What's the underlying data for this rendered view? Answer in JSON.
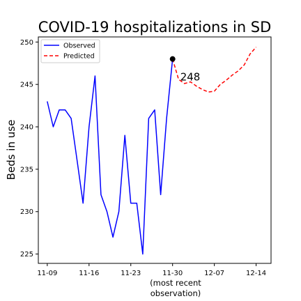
{
  "chart_data": {
    "type": "line",
    "title": "COVID-19 hospitalizations in SD",
    "ylabel": "Beds in use",
    "xlabel_lines": [
      "(most recent",
      "observation)"
    ],
    "ylim": [
      223.9,
      250.6
    ],
    "xlim": [
      -1.5,
      37.5
    ],
    "y_ticks": [
      225,
      230,
      235,
      240,
      245,
      250
    ],
    "x_ticks": [
      {
        "day": 0,
        "label": "11-09"
      },
      {
        "day": 7,
        "label": "11-16"
      },
      {
        "day": 14,
        "label": "11-23"
      },
      {
        "day": 21,
        "label": "11-30"
      },
      {
        "day": 28,
        "label": "12-07"
      },
      {
        "day": 35,
        "label": "12-14"
      }
    ],
    "grid": false,
    "legend_position": "top-left",
    "series": [
      {
        "name": "Observed",
        "color": "#0000ff",
        "style": "solid",
        "x": [
          0,
          1,
          2,
          3,
          4,
          5,
          6,
          7,
          8,
          9,
          10,
          11,
          12,
          13,
          14,
          15,
          16,
          17,
          18,
          19,
          20,
          21
        ],
        "y": [
          243,
          240,
          242,
          242,
          241,
          236,
          231,
          240,
          246,
          232,
          230,
          227,
          230,
          239,
          231,
          231,
          225,
          241,
          242,
          232,
          241,
          248
        ]
      },
      {
        "name": "Predicted",
        "color": "#ff0000",
        "style": "dashed",
        "x": [
          21,
          22,
          23,
          24,
          25,
          26,
          27,
          28,
          29,
          30,
          31,
          32,
          33,
          34,
          35
        ],
        "y": [
          248,
          245.6,
          245.1,
          245.3,
          244.8,
          244.4,
          244.1,
          244.2,
          245.0,
          245.5,
          246.1,
          246.6,
          247.3,
          248.6,
          249.4
        ]
      }
    ],
    "marker": {
      "x": 21,
      "y": 248,
      "color": "#000000"
    },
    "annotation": {
      "text": "248",
      "x": 21,
      "y": 248
    }
  }
}
